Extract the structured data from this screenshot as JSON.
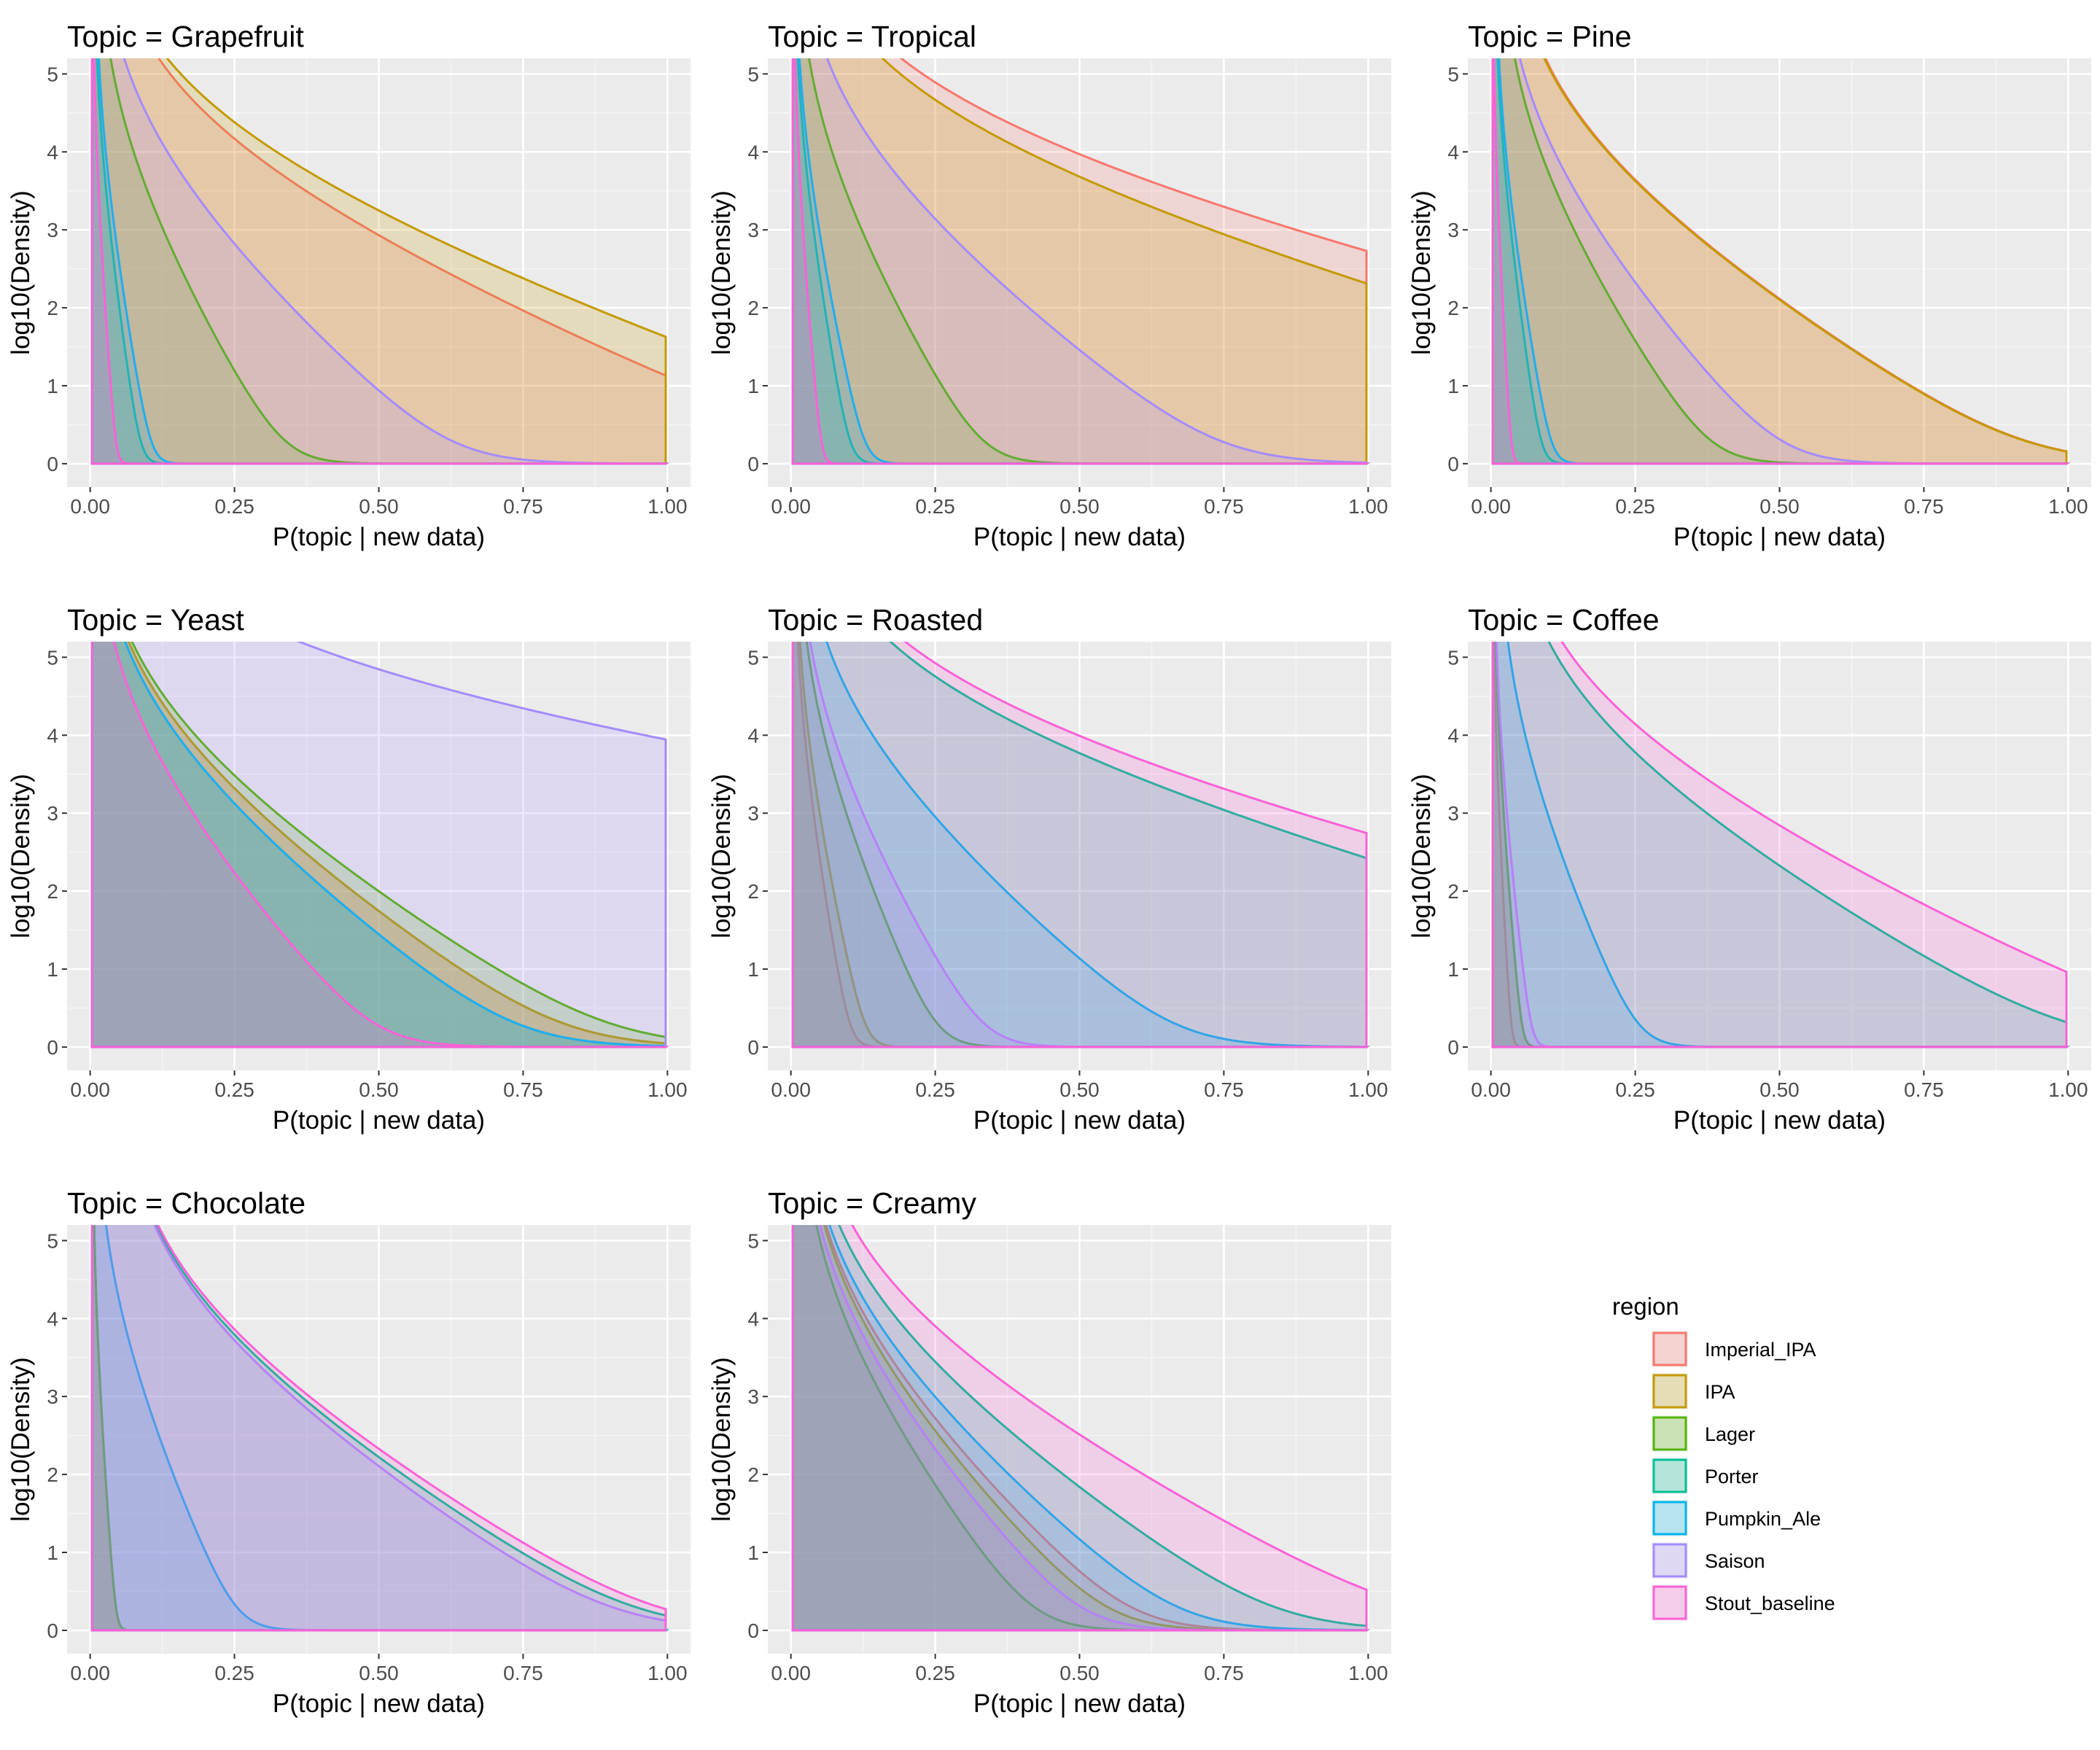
{
  "chart_data": {
    "type": "area",
    "description_free": true,
    "xlabel": "P(topic | new data)",
    "ylabel": "log10(Density)",
    "xlim": [
      0,
      1
    ],
    "ylim": [
      0,
      5.2
    ],
    "x_ticks": [
      "0.00",
      "0.25",
      "0.50",
      "0.75",
      "1.00"
    ],
    "y_ticks": [
      "0",
      "1",
      "2",
      "3",
      "4",
      "5"
    ],
    "legend": {
      "title": "region",
      "position": "bottom-right",
      "entries": [
        "Imperial_IPA",
        "IPA",
        "Lager",
        "Porter",
        "Pumpkin_Ale",
        "Saison",
        "Stout_baseline"
      ]
    },
    "colors": {
      "Imperial_IPA": "#F8766D",
      "IPA": "#C49A00",
      "Lager": "#53B400",
      "Porter": "#00C094",
      "Pumpkin_Ale": "#00B6EB",
      "Saison": "#A58AFF",
      "Stout_baseline": "#FB61D7"
    },
    "panels": [
      {
        "title": "Topic = Grapefruit",
        "series": [
          {
            "name": "Imperial_IPA",
            "peak": 0.025,
            "decay": 0.16
          },
          {
            "name": "IPA",
            "peak": 0.022,
            "decay": 0.19
          },
          {
            "name": "Lager",
            "peak": 0.012,
            "decay": 0.04
          },
          {
            "name": "Porter",
            "peak": 0.006,
            "decay": 0.01
          },
          {
            "name": "Pumpkin_Ale",
            "peak": 0.008,
            "decay": 0.012
          },
          {
            "name": "Saison",
            "peak": 0.015,
            "decay": 0.075
          },
          {
            "name": "Stout_baseline",
            "peak": 0.004,
            "decay": 0.005
          }
        ]
      },
      {
        "title": "Topic = Tropical",
        "series": [
          {
            "name": "Imperial_IPA",
            "peak": 0.015,
            "decay": 0.3
          },
          {
            "name": "IPA",
            "peak": 0.012,
            "decay": 0.25
          },
          {
            "name": "Lager",
            "peak": 0.008,
            "decay": 0.04
          },
          {
            "name": "Porter",
            "peak": 0.005,
            "decay": 0.012
          },
          {
            "name": "Pumpkin_Ale",
            "peak": 0.006,
            "decay": 0.015
          },
          {
            "name": "Saison",
            "peak": 0.01,
            "decay": 0.09
          },
          {
            "name": "Stout_baseline",
            "peak": 0.004,
            "decay": 0.006
          }
        ]
      },
      {
        "title": "Topic = Pine",
        "series": [
          {
            "name": "Imperial_IPA",
            "peak": 0.03,
            "decay": 0.11
          },
          {
            "name": "IPA",
            "peak": 0.028,
            "decay": 0.11
          },
          {
            "name": "Lager",
            "peak": 0.015,
            "decay": 0.045
          },
          {
            "name": "Porter",
            "peak": 0.006,
            "decay": 0.01
          },
          {
            "name": "Pumpkin_Ale",
            "peak": 0.007,
            "decay": 0.012
          },
          {
            "name": "Saison",
            "peak": 0.015,
            "decay": 0.06
          },
          {
            "name": "Stout_baseline",
            "peak": 0.003,
            "decay": 0.004
          }
        ]
      },
      {
        "title": "Topic = Yeast",
        "series": [
          {
            "name": "Imperial_IPA",
            "peak": 0.008,
            "decay": 0.1
          },
          {
            "name": "IPA",
            "peak": 0.008,
            "decay": 0.1
          },
          {
            "name": "Lager",
            "peak": 0.008,
            "decay": 0.11
          },
          {
            "name": "Porter",
            "peak": 0.008,
            "decay": 0.09
          },
          {
            "name": "Pumpkin_Ale",
            "peak": 0.008,
            "decay": 0.09
          },
          {
            "name": "Saison",
            "peak": 0.01,
            "decay": 0.6
          },
          {
            "name": "Stout_baseline",
            "peak": 0.006,
            "decay": 0.06
          }
        ]
      },
      {
        "title": "Topic = Roasted",
        "series": [
          {
            "name": "Imperial_IPA",
            "peak": 0.005,
            "decay": 0.012
          },
          {
            "name": "IPA",
            "peak": 0.007,
            "decay": 0.015
          },
          {
            "name": "Lager",
            "peak": 0.01,
            "decay": 0.03
          },
          {
            "name": "Porter",
            "peak": 0.02,
            "decay": 0.26
          },
          {
            "name": "Pumpkin_Ale",
            "peak": 0.015,
            "decay": 0.08
          },
          {
            "name": "Saison",
            "peak": 0.01,
            "decay": 0.04
          },
          {
            "name": "Stout_baseline",
            "peak": 0.022,
            "decay": 0.3
          }
        ]
      },
      {
        "title": "Topic = Coffee",
        "series": [
          {
            "name": "Imperial_IPA",
            "peak": 0.003,
            "decay": 0.004
          },
          {
            "name": "IPA",
            "peak": 0.005,
            "decay": 0.006
          },
          {
            "name": "Lager",
            "peak": 0.005,
            "decay": 0.006
          },
          {
            "name": "Porter",
            "peak": 0.03,
            "decay": 0.12
          },
          {
            "name": "Pumpkin_Ale",
            "peak": 0.012,
            "decay": 0.03
          },
          {
            "name": "Saison",
            "peak": 0.005,
            "decay": 0.008
          },
          {
            "name": "Stout_baseline",
            "peak": 0.035,
            "decay": 0.15
          }
        ]
      },
      {
        "title": "Topic = Chocolate",
        "series": [
          {
            "name": "Imperial_IPA",
            "peak": 0.004,
            "decay": 0.005
          },
          {
            "name": "IPA",
            "peak": 0.004,
            "decay": 0.005
          },
          {
            "name": "Lager",
            "peak": 0.004,
            "decay": 0.005
          },
          {
            "name": "Porter",
            "peak": 0.05,
            "decay": 0.11
          },
          {
            "name": "Pumpkin_Ale",
            "peak": 0.01,
            "decay": 0.03
          },
          {
            "name": "Saison",
            "peak": 0.05,
            "decay": 0.105
          },
          {
            "name": "Stout_baseline",
            "peak": 0.05,
            "decay": 0.115
          }
        ]
      },
      {
        "title": "Topic = Creamy",
        "series": [
          {
            "name": "Imperial_IPA",
            "peak": 0.02,
            "decay": 0.07
          },
          {
            "name": "IPA",
            "peak": 0.02,
            "decay": 0.065
          },
          {
            "name": "Lager",
            "peak": 0.015,
            "decay": 0.05
          },
          {
            "name": "Porter",
            "peak": 0.025,
            "decay": 0.1
          },
          {
            "name": "Pumpkin_Ale",
            "peak": 0.02,
            "decay": 0.08
          },
          {
            "name": "Saison",
            "peak": 0.015,
            "decay": 0.06
          },
          {
            "name": "Stout_baseline",
            "peak": 0.03,
            "decay": 0.13
          }
        ]
      }
    ]
  }
}
